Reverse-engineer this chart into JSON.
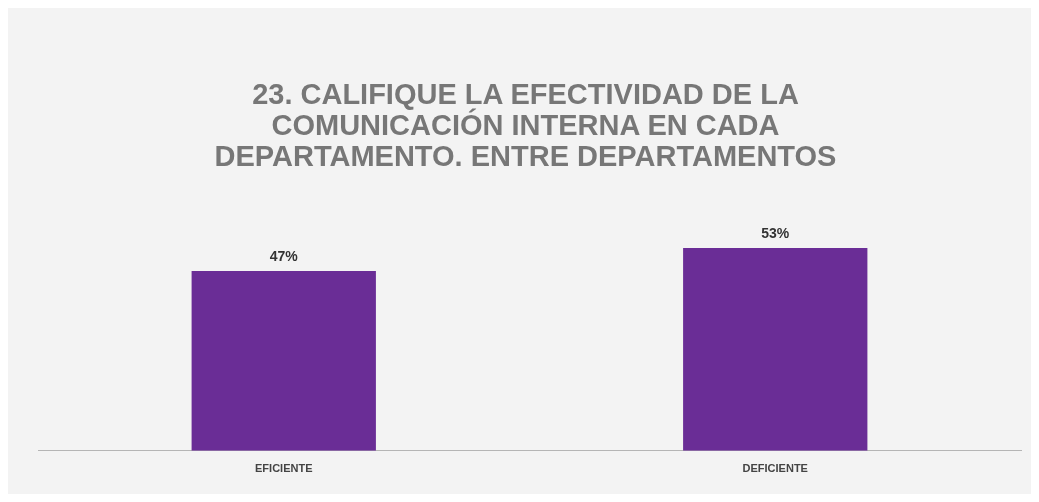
{
  "chart_data": {
    "type": "bar",
    "title": "23. CALIFIQUE LA EFECTIVIDAD DE LA COMUNICACIÓN INTERNA EN CADA DEPARTAMENTO. ENTRE DEPARTAMENTOS",
    "categories": [
      "EFICIENTE",
      "DEFICIENTE"
    ],
    "values": [
      47,
      53
    ],
    "color": "#6a2d96",
    "tick_labels": "x",
    "data_labels": true,
    "value_labels": [
      "47%",
      "53%"
    ],
    "grid": false,
    "legend": false
  }
}
